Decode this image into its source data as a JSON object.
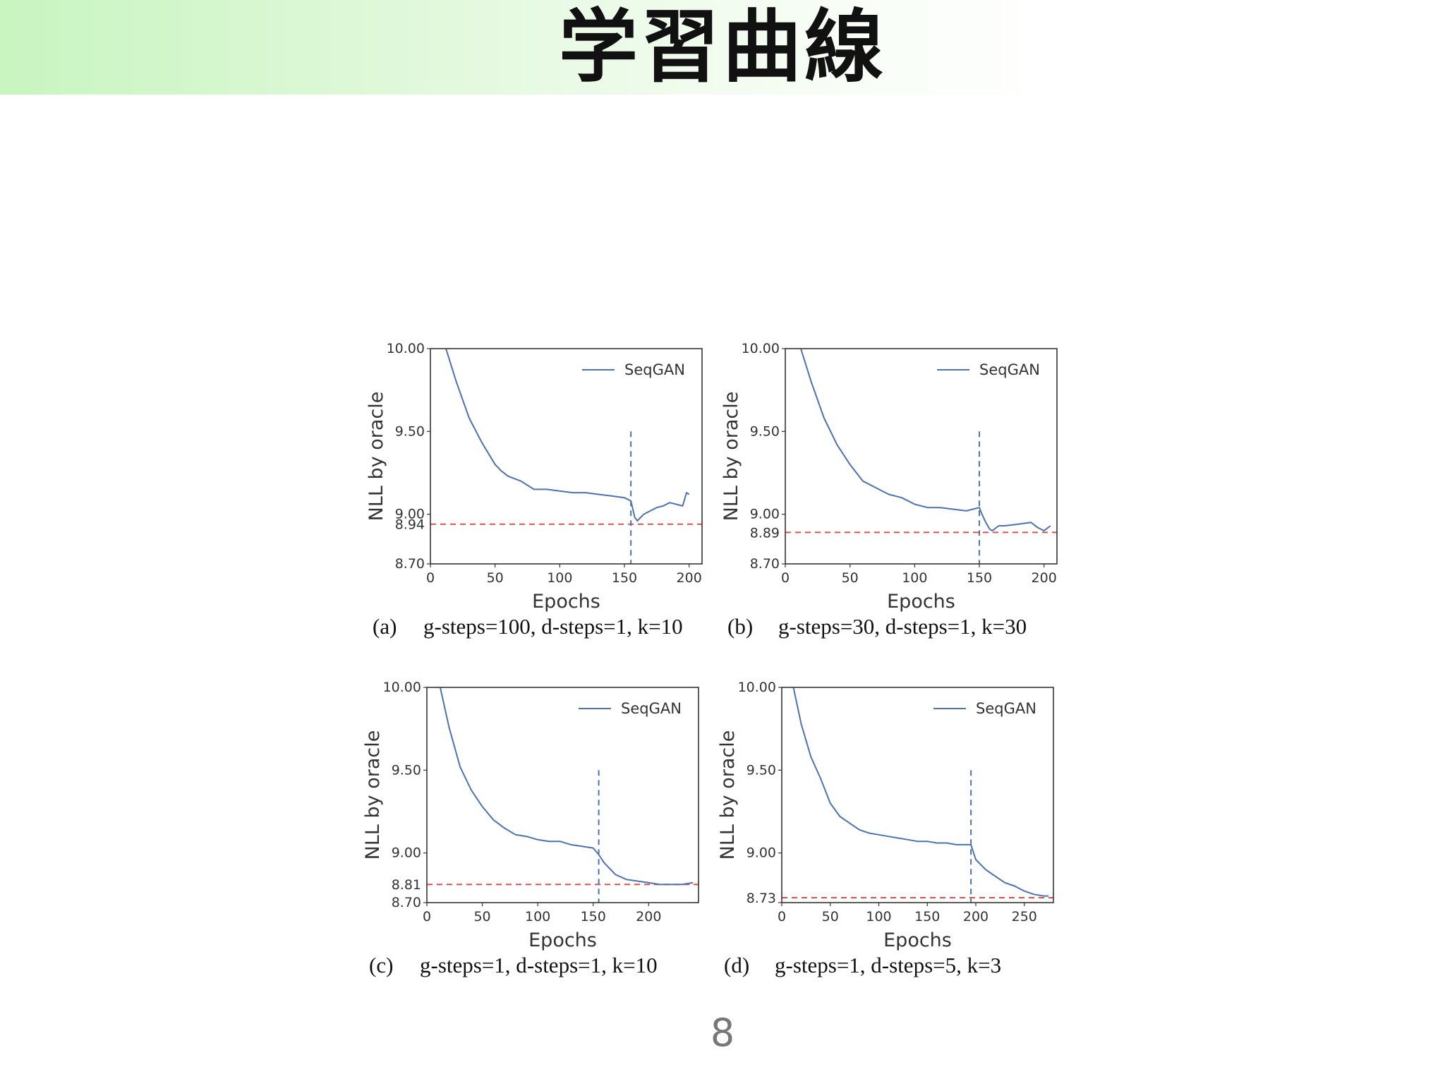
{
  "slide": {
    "title": "学習曲線",
    "page_number": "8"
  },
  "colors": {
    "series": "#4c72b0",
    "reference": "#d9534f",
    "transition": "#4c72b0",
    "frame": "#333333"
  },
  "chart_data": [
    {
      "id": "a",
      "type": "line",
      "caption_id": "(a)",
      "caption": "g-steps=100, d-steps=1, k=10",
      "xlabel": "Epochs",
      "ylabel": "NLL by oracle",
      "xlim": [
        0,
        210
      ],
      "ylim": [
        8.7,
        10.0
      ],
      "xticks": [
        0,
        50,
        100,
        150,
        200
      ],
      "yticks": [
        8.7,
        9.0,
        9.5,
        10.0
      ],
      "ytick_labels": [
        "8.70",
        "9.00",
        "9.50",
        "10.00"
      ],
      "reference_line": {
        "y": 8.94,
        "label": "8.94"
      },
      "transition_x": 155,
      "legend": {
        "label": "SeqGAN",
        "position": "top-right"
      },
      "series": [
        {
          "name": "SeqGAN",
          "x": [
            12,
            20,
            30,
            40,
            50,
            55,
            60,
            70,
            80,
            90,
            100,
            110,
            120,
            130,
            140,
            150,
            155,
            158,
            160,
            165,
            170,
            175,
            180,
            185,
            190,
            195,
            198,
            200
          ],
          "y": [
            10.0,
            9.8,
            9.58,
            9.43,
            9.3,
            9.26,
            9.23,
            9.2,
            9.15,
            9.15,
            9.14,
            9.13,
            9.13,
            9.12,
            9.11,
            9.1,
            9.08,
            8.98,
            8.96,
            9.0,
            9.02,
            9.04,
            9.05,
            9.07,
            9.06,
            9.05,
            9.13,
            9.12
          ]
        }
      ]
    },
    {
      "id": "b",
      "type": "line",
      "caption_id": "(b)",
      "caption": "g-steps=30, d-steps=1, k=30",
      "xlabel": "Epochs",
      "ylabel": "NLL by oracle",
      "xlim": [
        0,
        210
      ],
      "ylim": [
        8.7,
        10.0
      ],
      "xticks": [
        0,
        50,
        100,
        150,
        200
      ],
      "yticks": [
        8.7,
        9.0,
        9.5,
        10.0
      ],
      "ytick_labels": [
        "8.70",
        "9.00",
        "9.50",
        "10.00"
      ],
      "reference_line": {
        "y": 8.89,
        "label": "8.89"
      },
      "transition_x": 150,
      "legend": {
        "label": "SeqGAN",
        "position": "top-right"
      },
      "series": [
        {
          "name": "SeqGAN",
          "x": [
            12,
            20,
            30,
            40,
            50,
            60,
            70,
            80,
            90,
            100,
            110,
            120,
            130,
            140,
            150,
            152,
            155,
            158,
            160,
            165,
            170,
            180,
            190,
            195,
            200,
            205
          ],
          "y": [
            10.0,
            9.8,
            9.58,
            9.42,
            9.3,
            9.2,
            9.16,
            9.12,
            9.1,
            9.06,
            9.04,
            9.04,
            9.03,
            9.02,
            9.04,
            9.0,
            8.95,
            8.91,
            8.9,
            8.93,
            8.93,
            8.94,
            8.95,
            8.92,
            8.9,
            8.93
          ]
        }
      ]
    },
    {
      "id": "c",
      "type": "line",
      "caption_id": "(c)",
      "caption": "g-steps=1, d-steps=1, k=10",
      "xlabel": "Epochs",
      "ylabel": "NLL by oracle",
      "xlim": [
        0,
        245
      ],
      "ylim": [
        8.7,
        10.0
      ],
      "xticks": [
        0,
        50,
        100,
        150,
        200
      ],
      "yticks": [
        8.7,
        9.0,
        9.5,
        10.0
      ],
      "ytick_labels": [
        "8.70",
        "9.00",
        "9.50",
        "10.00"
      ],
      "reference_line": {
        "y": 8.81,
        "label": "8.81"
      },
      "transition_x": 155,
      "legend": {
        "label": "SeqGAN",
        "position": "top-right"
      },
      "series": [
        {
          "name": "SeqGAN",
          "x": [
            12,
            20,
            30,
            40,
            50,
            60,
            70,
            80,
            90,
            100,
            110,
            120,
            130,
            140,
            150,
            155,
            160,
            170,
            180,
            190,
            200,
            210,
            220,
            230,
            240
          ],
          "y": [
            10.0,
            9.76,
            9.52,
            9.38,
            9.28,
            9.2,
            9.15,
            9.11,
            9.1,
            9.08,
            9.07,
            9.07,
            9.05,
            9.04,
            9.03,
            8.99,
            8.94,
            8.87,
            8.84,
            8.83,
            8.82,
            8.81,
            8.81,
            8.81,
            8.82
          ]
        }
      ]
    },
    {
      "id": "d",
      "type": "line",
      "caption_id": "(d)",
      "caption": "g-steps=1, d-steps=5, k=3",
      "xlabel": "Epochs",
      "ylabel": "NLL by oracle",
      "xlim": [
        0,
        280
      ],
      "ylim": [
        8.7,
        10.0
      ],
      "xticks": [
        0,
        50,
        100,
        150,
        200,
        250
      ],
      "yticks": [
        8.7,
        9.0,
        9.5,
        10.0
      ],
      "ytick_labels": [
        "",
        "9.00",
        "9.50",
        "10.00"
      ],
      "reference_line": {
        "y": 8.73,
        "label": "8.73"
      },
      "transition_x": 195,
      "legend": {
        "label": "SeqGAN",
        "position": "top-right"
      },
      "series": [
        {
          "name": "SeqGAN",
          "x": [
            12,
            20,
            30,
            40,
            50,
            60,
            70,
            80,
            90,
            100,
            110,
            120,
            130,
            140,
            150,
            160,
            170,
            180,
            190,
            195,
            200,
            210,
            220,
            230,
            240,
            250,
            260,
            270,
            275
          ],
          "y": [
            10.0,
            9.78,
            9.58,
            9.45,
            9.3,
            9.22,
            9.18,
            9.14,
            9.12,
            9.11,
            9.1,
            9.09,
            9.08,
            9.07,
            9.07,
            9.06,
            9.06,
            9.05,
            9.05,
            9.05,
            8.96,
            8.9,
            8.86,
            8.82,
            8.8,
            8.77,
            8.75,
            8.74,
            8.74
          ]
        }
      ]
    }
  ]
}
